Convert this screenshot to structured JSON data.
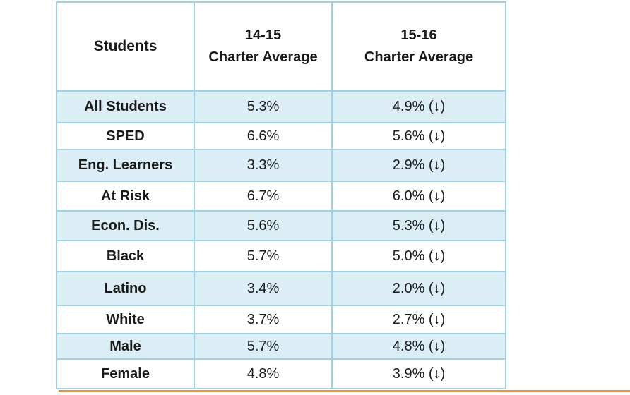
{
  "table": {
    "headers": {
      "students": "Students",
      "year1_line1": "14-15",
      "year1_line2": "Charter Average",
      "year2_line1": "15-16",
      "year2_line2": "Charter Average"
    },
    "rows": [
      {
        "label": "All Students",
        "y1": "5.3%",
        "y2": "4.9% (↓)"
      },
      {
        "label": "SPED",
        "y1": "6.6%",
        "y2": "5.6% (↓)"
      },
      {
        "label": "Eng. Learners",
        "y1": "3.3%",
        "y2": "2.9% (↓)"
      },
      {
        "label": "At Risk",
        "y1": "6.7%",
        "y2": "6.0% (↓)"
      },
      {
        "label": "Econ. Dis.",
        "y1": "5.6%",
        "y2": "5.3% (↓)"
      },
      {
        "label": "Black",
        "y1": "5.7%",
        "y2": "5.0% (↓)"
      },
      {
        "label": "Latino",
        "y1": "3.4%",
        "y2": "2.0% (↓)"
      },
      {
        "label": "White",
        "y1": "3.7%",
        "y2": "2.7% (↓)"
      },
      {
        "label": "Male",
        "y1": "5.7%",
        "y2": "4.8% (↓)"
      },
      {
        "label": "Female",
        "y1": "4.8%",
        "y2": "3.9% (↓)"
      }
    ]
  },
  "colors": {
    "border": "#9dd1e4",
    "shaded_row": "#dbeef5",
    "rule": "#f28c28"
  }
}
